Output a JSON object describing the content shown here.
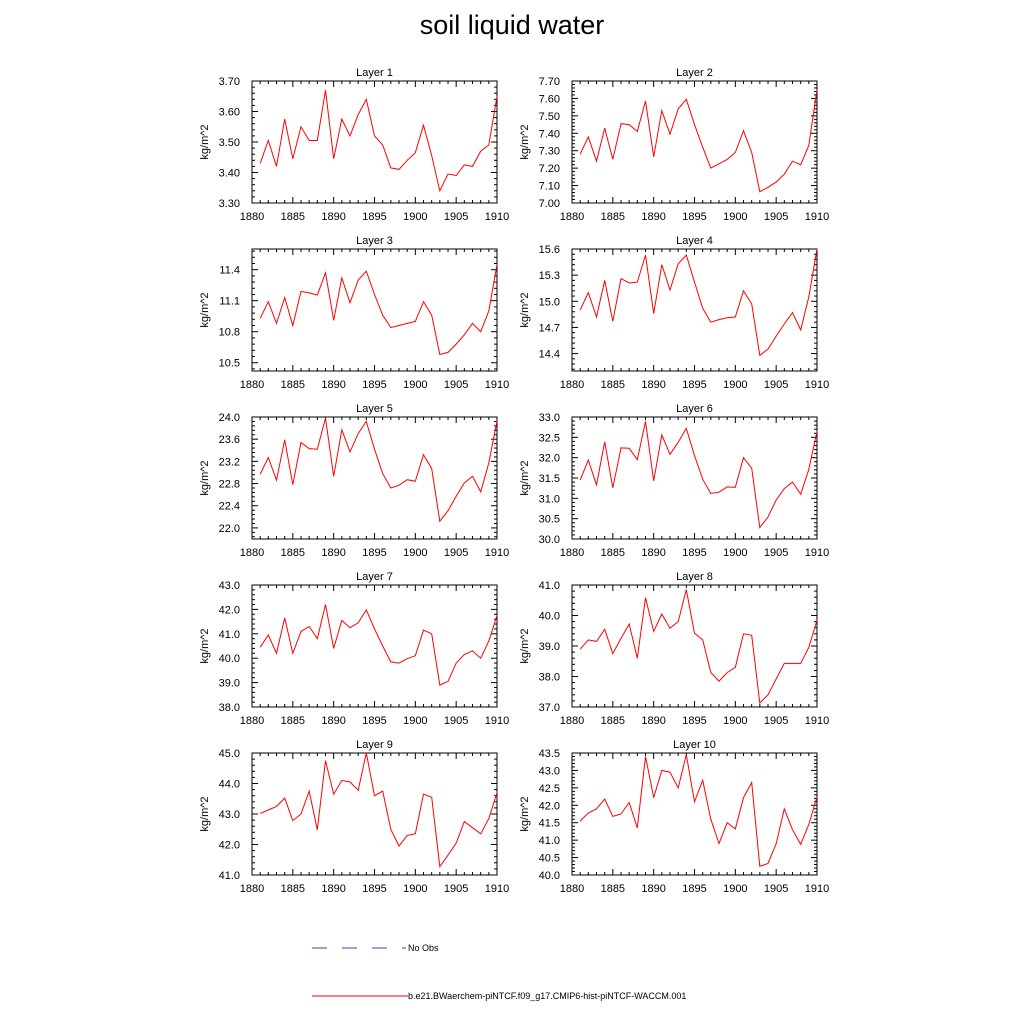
{
  "figure": {
    "title": "soil liquid water",
    "colors": {
      "series": "#ff0000",
      "obs": "#3b3bd6",
      "axis": "#000000"
    }
  },
  "legend": {
    "obs_label": "No Obs",
    "series_label": "b.e21.BWaerchem-piNTCF.f09_g17.CMIP6-hist-piNTCF-WACCM.001"
  },
  "chart_data": [
    {
      "type": "line",
      "title": "Layer 1",
      "ylabel": "kg/m^2",
      "xlim": [
        1880,
        1910
      ],
      "xticks": [
        1880,
        1885,
        1890,
        1895,
        1900,
        1905,
        1910
      ],
      "ylim": [
        3.3,
        3.7
      ],
      "yticks": [
        "3.30",
        "3.40",
        "3.50",
        "3.60",
        "3.70"
      ],
      "x": [
        1881,
        1882,
        1883,
        1884,
        1885,
        1886,
        1887,
        1888,
        1889,
        1890,
        1891,
        1892,
        1893,
        1894,
        1895,
        1896,
        1897,
        1898,
        1899,
        1900,
        1901,
        1902,
        1903,
        1904,
        1905,
        1906,
        1907,
        1908,
        1909,
        1910
      ],
      "series": [
        {
          "name": "b.e21.BWaerchem-piNTCF.f09_g17.CMIP6-hist-piNTCF-WACCM.001",
          "values": [
            3.43,
            3.505,
            3.42,
            3.575,
            3.445,
            3.55,
            3.505,
            3.505,
            3.67,
            3.445,
            3.575,
            3.52,
            3.59,
            3.64,
            3.52,
            3.49,
            3.415,
            3.41,
            3.44,
            3.465,
            3.555,
            3.455,
            3.34,
            3.395,
            3.39,
            3.425,
            3.42,
            3.47,
            3.49,
            3.65
          ]
        }
      ]
    },
    {
      "type": "line",
      "title": "Layer 2",
      "ylabel": "kg/m^2",
      "xlim": [
        1880,
        1910
      ],
      "xticks": [
        1880,
        1885,
        1890,
        1895,
        1900,
        1905,
        1910
      ],
      "ylim": [
        7.0,
        7.7
      ],
      "yticks": [
        "7.00",
        "7.10",
        "7.20",
        "7.30",
        "7.40",
        "7.50",
        "7.60",
        "7.70"
      ],
      "x": [
        1881,
        1882,
        1883,
        1884,
        1885,
        1886,
        1887,
        1888,
        1889,
        1890,
        1891,
        1892,
        1893,
        1894,
        1895,
        1896,
        1897,
        1898,
        1899,
        1900,
        1901,
        1902,
        1903,
        1904,
        1905,
        1906,
        1907,
        1908,
        1909,
        1910
      ],
      "series": [
        {
          "name": "b.e21.BWaerchem-piNTCF.f09_g17.CMIP6-hist-piNTCF-WACCM.001",
          "values": [
            7.28,
            7.38,
            7.24,
            7.43,
            7.25,
            7.455,
            7.45,
            7.41,
            7.585,
            7.265,
            7.53,
            7.395,
            7.54,
            7.595,
            7.45,
            7.32,
            7.2,
            7.225,
            7.25,
            7.29,
            7.415,
            7.29,
            7.065,
            7.09,
            7.12,
            7.165,
            7.24,
            7.22,
            7.33,
            7.65
          ]
        }
      ]
    },
    {
      "type": "line",
      "title": "Layer 3",
      "ylabel": "kg/m^2",
      "xlim": [
        1880,
        1910
      ],
      "xticks": [
        1880,
        1885,
        1890,
        1895,
        1900,
        1905,
        1910
      ],
      "ylim": [
        10.42,
        11.6
      ],
      "yticks": [
        "10.5",
        "10.8",
        "11.1",
        "11.4"
      ],
      "x": [
        1881,
        1882,
        1883,
        1884,
        1885,
        1886,
        1887,
        1888,
        1889,
        1890,
        1891,
        1892,
        1893,
        1894,
        1895,
        1896,
        1897,
        1898,
        1899,
        1900,
        1901,
        1902,
        1903,
        1904,
        1905,
        1906,
        1907,
        1908,
        1909,
        1910
      ],
      "series": [
        {
          "name": "b.e21.BWaerchem-piNTCF.f09_g17.CMIP6-hist-piNTCF-WACCM.001",
          "values": [
            10.93,
            11.09,
            10.88,
            11.13,
            10.86,
            11.19,
            11.175,
            11.155,
            11.37,
            10.91,
            11.32,
            11.08,
            11.3,
            11.385,
            11.16,
            10.96,
            10.84,
            10.86,
            10.88,
            10.9,
            11.09,
            10.96,
            10.58,
            10.6,
            10.68,
            10.77,
            10.88,
            10.8,
            11.0,
            11.45
          ]
        }
      ]
    },
    {
      "type": "line",
      "title": "Layer 4",
      "ylabel": "kg/m^2",
      "xlim": [
        1880,
        1910
      ],
      "xticks": [
        1880,
        1885,
        1890,
        1895,
        1900,
        1905,
        1910
      ],
      "ylim": [
        14.2,
        15.6
      ],
      "yticks": [
        "14.4",
        "14.7",
        "15.0",
        "15.3",
        "15.6"
      ],
      "x": [
        1881,
        1882,
        1883,
        1884,
        1885,
        1886,
        1887,
        1888,
        1889,
        1890,
        1891,
        1892,
        1893,
        1894,
        1895,
        1896,
        1897,
        1898,
        1899,
        1900,
        1901,
        1902,
        1903,
        1904,
        1905,
        1906,
        1907,
        1908,
        1909,
        1910
      ],
      "series": [
        {
          "name": "b.e21.BWaerchem-piNTCF.f09_g17.CMIP6-hist-piNTCF-WACCM.001",
          "values": [
            14.9,
            15.1,
            14.82,
            15.24,
            14.77,
            15.26,
            15.21,
            15.22,
            15.53,
            14.86,
            15.42,
            15.13,
            15.43,
            15.53,
            15.22,
            14.92,
            14.76,
            14.79,
            14.81,
            14.82,
            15.12,
            14.97,
            14.38,
            14.45,
            14.6,
            14.74,
            14.87,
            14.67,
            15.05,
            15.6
          ]
        }
      ]
    },
    {
      "type": "line",
      "title": "Layer 5",
      "ylabel": "kg/m^2",
      "xlim": [
        1880,
        1910
      ],
      "xticks": [
        1880,
        1885,
        1890,
        1895,
        1900,
        1905,
        1910
      ],
      "ylim": [
        21.8,
        24.0
      ],
      "yticks": [
        "22.0",
        "22.4",
        "22.8",
        "23.2",
        "23.6",
        "24.0"
      ],
      "x": [
        1881,
        1882,
        1883,
        1884,
        1885,
        1886,
        1887,
        1888,
        1889,
        1890,
        1891,
        1892,
        1893,
        1894,
        1895,
        1896,
        1897,
        1898,
        1899,
        1900,
        1901,
        1902,
        1903,
        1904,
        1905,
        1906,
        1907,
        1908,
        1909,
        1910
      ],
      "series": [
        {
          "name": "b.e21.BWaerchem-piNTCF.f09_g17.CMIP6-hist-piNTCF-WACCM.001",
          "values": [
            22.97,
            23.27,
            22.86,
            23.59,
            22.78,
            23.54,
            23.43,
            23.42,
            23.98,
            22.93,
            23.77,
            23.37,
            23.7,
            23.92,
            23.42,
            22.98,
            22.72,
            22.77,
            22.87,
            22.84,
            23.32,
            23.07,
            22.12,
            22.31,
            22.57,
            22.81,
            22.93,
            22.65,
            23.17,
            23.93
          ]
        }
      ]
    },
    {
      "type": "line",
      "title": "Layer 6",
      "ylabel": "kg/m^2",
      "xlim": [
        1880,
        1910
      ],
      "xticks": [
        1880,
        1885,
        1890,
        1895,
        1900,
        1905,
        1910
      ],
      "ylim": [
        30.0,
        33.0
      ],
      "yticks": [
        "30.0",
        "30.5",
        "31.0",
        "31.5",
        "32.0",
        "32.5",
        "33.0"
      ],
      "x": [
        1881,
        1882,
        1883,
        1884,
        1885,
        1886,
        1887,
        1888,
        1889,
        1890,
        1891,
        1892,
        1893,
        1894,
        1895,
        1896,
        1897,
        1898,
        1899,
        1900,
        1901,
        1902,
        1903,
        1904,
        1905,
        1906,
        1907,
        1908,
        1909,
        1910
      ],
      "series": [
        {
          "name": "b.e21.BWaerchem-piNTCF.f09_g17.CMIP6-hist-piNTCF-WACCM.001",
          "values": [
            31.45,
            31.94,
            31.33,
            32.39,
            31.26,
            32.24,
            32.23,
            31.95,
            32.89,
            31.43,
            32.56,
            32.08,
            32.38,
            32.72,
            32.05,
            31.47,
            31.12,
            31.15,
            31.28,
            31.27,
            32.0,
            31.74,
            30.28,
            30.54,
            30.96,
            31.24,
            31.4,
            31.1,
            31.71,
            32.65
          ]
        }
      ]
    },
    {
      "type": "line",
      "title": "Layer 7",
      "ylabel": "kg/m^2",
      "xlim": [
        1880,
        1910
      ],
      "xticks": [
        1880,
        1885,
        1890,
        1895,
        1900,
        1905,
        1910
      ],
      "ylim": [
        38.0,
        43.0
      ],
      "yticks": [
        "38.0",
        "39.0",
        "40.0",
        "41.0",
        "42.0",
        "43.0"
      ],
      "x": [
        1881,
        1882,
        1883,
        1884,
        1885,
        1886,
        1887,
        1888,
        1889,
        1890,
        1891,
        1892,
        1893,
        1894,
        1895,
        1896,
        1897,
        1898,
        1899,
        1900,
        1901,
        1902,
        1903,
        1904,
        1905,
        1906,
        1907,
        1908,
        1909,
        1910
      ],
      "series": [
        {
          "name": "b.e21.BWaerchem-piNTCF.f09_g17.CMIP6-hist-piNTCF-WACCM.001",
          "values": [
            40.45,
            40.95,
            40.2,
            41.65,
            40.2,
            41.1,
            41.3,
            40.8,
            42.2,
            40.4,
            41.55,
            41.25,
            41.45,
            41.98,
            41.2,
            40.5,
            39.85,
            39.8,
            39.98,
            40.1,
            41.15,
            41.0,
            38.9,
            39.05,
            39.8,
            40.15,
            40.3,
            40.0,
            40.7,
            41.75
          ]
        }
      ]
    },
    {
      "type": "line",
      "title": "Layer 8",
      "ylabel": "kg/m^2",
      "xlim": [
        1880,
        1910
      ],
      "xticks": [
        1880,
        1885,
        1890,
        1895,
        1900,
        1905,
        1910
      ],
      "ylim": [
        37.0,
        41.0
      ],
      "yticks": [
        "37.0",
        "38.0",
        "39.0",
        "40.0",
        "41.0"
      ],
      "x": [
        1881,
        1882,
        1883,
        1884,
        1885,
        1886,
        1887,
        1888,
        1889,
        1890,
        1891,
        1892,
        1893,
        1894,
        1895,
        1896,
        1897,
        1898,
        1899,
        1900,
        1901,
        1902,
        1903,
        1904,
        1905,
        1906,
        1907,
        1908,
        1909,
        1910
      ],
      "series": [
        {
          "name": "b.e21.BWaerchem-piNTCF.f09_g17.CMIP6-hist-piNTCF-WACCM.001",
          "values": [
            38.9,
            39.2,
            39.15,
            39.55,
            38.75,
            39.25,
            39.72,
            38.6,
            40.58,
            39.48,
            40.05,
            39.58,
            39.8,
            40.85,
            39.42,
            39.2,
            38.13,
            37.85,
            38.13,
            38.3,
            39.4,
            39.35,
            37.13,
            37.4,
            37.92,
            38.43,
            38.43,
            38.43,
            38.95,
            39.85
          ]
        }
      ]
    },
    {
      "type": "line",
      "title": "Layer 9",
      "ylabel": "kg/m^2",
      "xlim": [
        1880,
        1910
      ],
      "xticks": [
        1880,
        1885,
        1890,
        1895,
        1900,
        1905,
        1910
      ],
      "ylim": [
        41.0,
        45.0
      ],
      "yticks": [
        "41.0",
        "42.0",
        "43.0",
        "44.0",
        "45.0"
      ],
      "x": [
        1881,
        1882,
        1883,
        1884,
        1885,
        1886,
        1887,
        1888,
        1889,
        1890,
        1891,
        1892,
        1893,
        1894,
        1895,
        1896,
        1897,
        1898,
        1899,
        1900,
        1901,
        1902,
        1903,
        1904,
        1905,
        1906,
        1907,
        1908,
        1909,
        1910
      ],
      "series": [
        {
          "name": "b.e21.BWaerchem-piNTCF.f09_g17.CMIP6-hist-piNTCF-WACCM.001",
          "values": [
            43.02,
            43.13,
            43.25,
            43.52,
            42.78,
            43.0,
            43.75,
            42.48,
            44.75,
            43.65,
            44.1,
            44.05,
            43.78,
            45.0,
            43.6,
            43.75,
            42.5,
            41.95,
            42.3,
            42.35,
            43.65,
            43.55,
            41.28,
            41.65,
            42.05,
            42.75,
            42.55,
            42.35,
            42.85,
            43.7
          ]
        }
      ]
    },
    {
      "type": "line",
      "title": "Layer 10",
      "ylabel": "kg/m^2",
      "xlim": [
        1880,
        1910
      ],
      "xticks": [
        1880,
        1885,
        1890,
        1895,
        1900,
        1905,
        1910
      ],
      "ylim": [
        40.0,
        43.5
      ],
      "yticks": [
        "40.0",
        "40.5",
        "41.0",
        "41.5",
        "42.0",
        "42.5",
        "43.0",
        "43.5"
      ],
      "x": [
        1881,
        1882,
        1883,
        1884,
        1885,
        1886,
        1887,
        1888,
        1889,
        1890,
        1891,
        1892,
        1893,
        1894,
        1895,
        1896,
        1897,
        1898,
        1899,
        1900,
        1901,
        1902,
        1903,
        1904,
        1905,
        1906,
        1907,
        1908,
        1909,
        1910
      ],
      "series": [
        {
          "name": "b.e21.BWaerchem-piNTCF.f09_g17.CMIP6-hist-piNTCF-WACCM.001",
          "values": [
            41.55,
            41.78,
            41.9,
            42.18,
            41.68,
            41.75,
            42.08,
            41.35,
            43.4,
            42.22,
            43.0,
            42.95,
            42.5,
            43.45,
            42.1,
            42.72,
            41.6,
            40.9,
            41.5,
            41.32,
            42.22,
            42.65,
            40.25,
            40.33,
            40.9,
            41.9,
            41.3,
            40.88,
            41.45,
            42.25
          ]
        }
      ]
    }
  ]
}
